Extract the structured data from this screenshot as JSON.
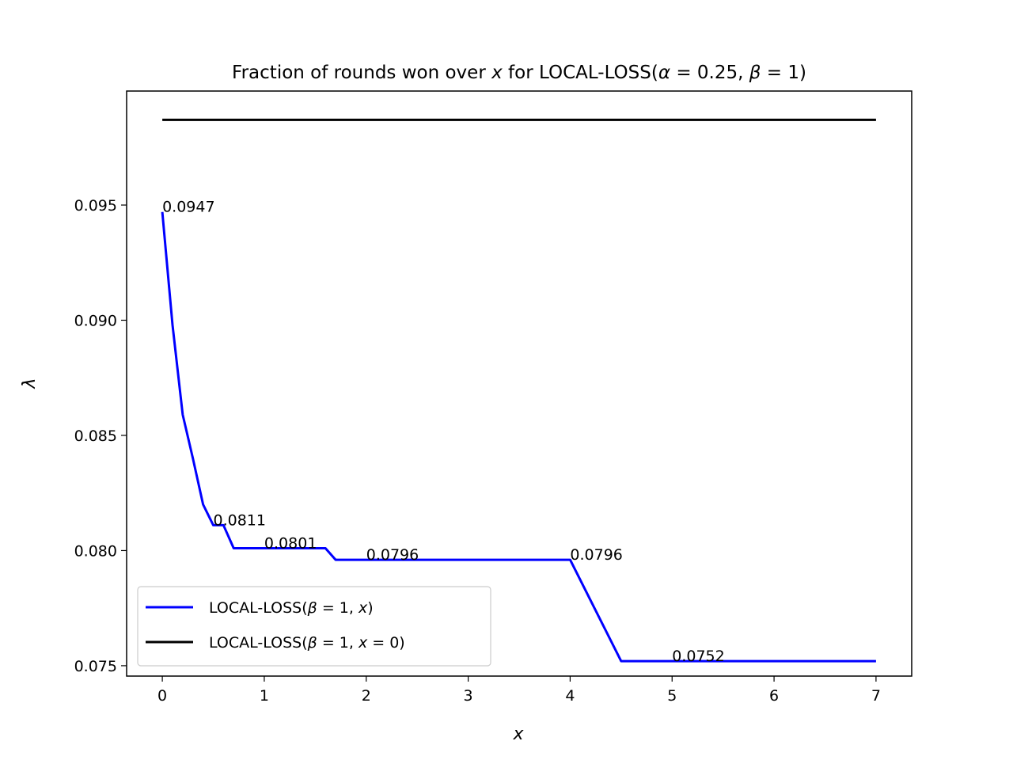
{
  "chart_data": {
    "type": "line",
    "title": "Fraction of rounds won over x for LOCAL-LOSS(α = 0.25, β = 1)",
    "title_parts": {
      "prefix": "Fraction of rounds won over ",
      "var": "x",
      "middle": " for LOCAL-LOSS(",
      "alpha_sym": "α",
      "alpha_eq": " = 0.25, ",
      "beta_sym": "β",
      "beta_eq": " = 1)"
    },
    "xlabel": "x",
    "ylabel": "λ",
    "xlim": [
      -0.35,
      7.35
    ],
    "ylim": [
      0.07455,
      0.09995
    ],
    "xticks": [
      0,
      1,
      2,
      3,
      4,
      5,
      6,
      7
    ],
    "xtick_labels": [
      "0",
      "1",
      "2",
      "3",
      "4",
      "5",
      "6",
      "7"
    ],
    "yticks": [
      0.075,
      0.08,
      0.085,
      0.09,
      0.095
    ],
    "ytick_labels": [
      "0.075",
      "0.080",
      "0.085",
      "0.090",
      "0.095"
    ],
    "grid": false,
    "legend_position": "lower-left",
    "series": [
      {
        "name": "LOCAL-LOSS(β = 1, x)",
        "legend_parts": {
          "prefix": "LOCAL-LOSS(",
          "beta": "β",
          "rest": " = 1, ",
          "x": "x",
          "close": ")"
        },
        "color": "#0000ff",
        "x": [
          0,
          0.1,
          0.2,
          0.3,
          0.4,
          0.5,
          0.6,
          0.7,
          0.8,
          0.9,
          1.0,
          1.1,
          1.2,
          1.3,
          1.4,
          1.5,
          1.6,
          1.7,
          4.0,
          4.5,
          7.0
        ],
        "y": [
          0.0947,
          0.0898,
          0.0859,
          0.084,
          0.082,
          0.0811,
          0.0811,
          0.0801,
          0.0801,
          0.0801,
          0.0801,
          0.0801,
          0.0801,
          0.0801,
          0.0801,
          0.0801,
          0.0801,
          0.0796,
          0.0796,
          0.0752,
          0.0752
        ]
      },
      {
        "name": "LOCAL-LOSS(β = 1, x = 0)",
        "legend_parts": {
          "prefix": "LOCAL-LOSS(",
          "beta": "β",
          "rest": " = 1, ",
          "x": "x",
          "close": " = 0)"
        },
        "color": "#000000",
        "x": [
          0,
          7
        ],
        "y": [
          0.0987,
          0.0987
        ]
      }
    ],
    "annotations": [
      {
        "text": "0.0947",
        "x": 0.0,
        "y": 0.0947
      },
      {
        "text": "0.0811",
        "x": 0.5,
        "y": 0.0811
      },
      {
        "text": "0.0801",
        "x": 1.0,
        "y": 0.0801
      },
      {
        "text": "0.0796",
        "x": 2.0,
        "y": 0.0796
      },
      {
        "text": "0.0796",
        "x": 4.0,
        "y": 0.0796
      },
      {
        "text": "0.0752",
        "x": 5.0,
        "y": 0.0752
      }
    ]
  }
}
